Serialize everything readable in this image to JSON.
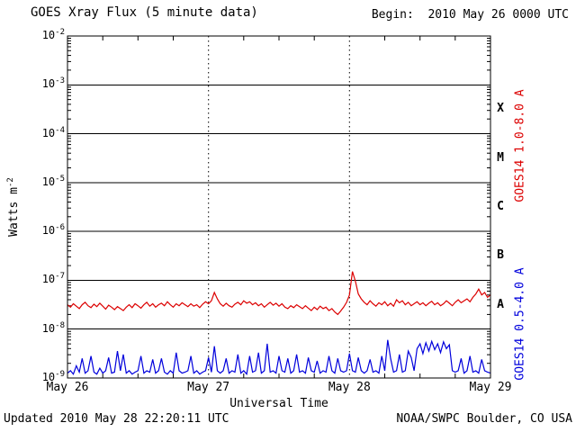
{
  "header": {
    "title": "GOES Xray Flux (5 minute data)",
    "begin_label": "Begin:  2010 May 26 0000 UTC"
  },
  "labels": {
    "xlabel": "Universal Time",
    "ylabel_base": "Watts m",
    "ylabel_exp": "-2"
  },
  "footer": {
    "updated": "Updated 2010 May 28 22:20:11 UTC",
    "credit": "NOAA/SWPC Boulder, CO USA"
  },
  "chart_data": {
    "type": "line",
    "title": "GOES Xray Flux (5 minute data)",
    "xlabel": "Universal Time",
    "ylabel": "Watts m^-2",
    "x_unit": "hours since 2010 May 26 0000 UTC",
    "xlim": [
      0,
      72
    ],
    "ylim_log10": [
      -9,
      -2
    ],
    "x_tick_labels": [
      "May 26",
      "May 27",
      "May 28",
      "May 29"
    ],
    "x_tick_hours": [
      0,
      24,
      48,
      72
    ],
    "y_tick_exponents": [
      -2,
      -3,
      -4,
      -5,
      -6,
      -7,
      -8,
      -9
    ],
    "grid": {
      "horizontal_decade_lines": "solid",
      "vertical_day_lines": "dotted"
    },
    "flare_class_bands": [
      {
        "label": "X",
        "mid_exponent": -3.5
      },
      {
        "label": "M",
        "mid_exponent": -4.5
      },
      {
        "label": "C",
        "mid_exponent": -5.5
      },
      {
        "label": "B",
        "mid_exponent": -6.5
      },
      {
        "label": "A",
        "mid_exponent": -7.5
      }
    ],
    "series": [
      {
        "name": "GOES14 1.0-8.0 A",
        "color": "#dc0000",
        "step_hours": 0.5,
        "log10_flux": [
          -7.5,
          -7.55,
          -7.48,
          -7.53,
          -7.58,
          -7.5,
          -7.45,
          -7.52,
          -7.56,
          -7.49,
          -7.54,
          -7.47,
          -7.53,
          -7.59,
          -7.51,
          -7.55,
          -7.6,
          -7.54,
          -7.58,
          -7.62,
          -7.55,
          -7.5,
          -7.56,
          -7.48,
          -7.52,
          -7.57,
          -7.5,
          -7.45,
          -7.53,
          -7.48,
          -7.55,
          -7.5,
          -7.47,
          -7.52,
          -7.44,
          -7.5,
          -7.55,
          -7.48,
          -7.52,
          -7.46,
          -7.5,
          -7.54,
          -7.48,
          -7.53,
          -7.5,
          -7.56,
          -7.49,
          -7.44,
          -7.48,
          -7.42,
          -7.25,
          -7.38,
          -7.48,
          -7.53,
          -7.47,
          -7.52,
          -7.55,
          -7.49,
          -7.45,
          -7.5,
          -7.42,
          -7.47,
          -7.44,
          -7.5,
          -7.46,
          -7.52,
          -7.48,
          -7.55,
          -7.5,
          -7.45,
          -7.51,
          -7.47,
          -7.53,
          -7.48,
          -7.55,
          -7.58,
          -7.52,
          -7.56,
          -7.5,
          -7.54,
          -7.58,
          -7.52,
          -7.57,
          -7.62,
          -7.55,
          -7.6,
          -7.53,
          -7.58,
          -7.55,
          -7.62,
          -7.58,
          -7.65,
          -7.7,
          -7.63,
          -7.55,
          -7.45,
          -7.3,
          -6.82,
          -7.02,
          -7.28,
          -7.38,
          -7.45,
          -7.5,
          -7.42,
          -7.48,
          -7.53,
          -7.46,
          -7.5,
          -7.44,
          -7.52,
          -7.47,
          -7.53,
          -7.4,
          -7.46,
          -7.42,
          -7.5,
          -7.45,
          -7.52,
          -7.48,
          -7.44,
          -7.5,
          -7.46,
          -7.52,
          -7.47,
          -7.43,
          -7.5,
          -7.46,
          -7.52,
          -7.48,
          -7.42,
          -7.47,
          -7.52,
          -7.45,
          -7.4,
          -7.46,
          -7.42,
          -7.38,
          -7.44,
          -7.35,
          -7.28,
          -7.18,
          -7.3,
          -7.25,
          -7.35,
          -7.3
        ]
      },
      {
        "name": "GOES14 0.5-4.0 A",
        "color": "#0000dc",
        "step_hours": 0.5,
        "log10_flux": [
          -8.9,
          -8.85,
          -8.92,
          -8.75,
          -8.88,
          -8.6,
          -8.9,
          -8.85,
          -8.55,
          -8.88,
          -8.92,
          -8.8,
          -8.9,
          -8.85,
          -8.58,
          -8.9,
          -8.88,
          -8.45,
          -8.85,
          -8.52,
          -8.9,
          -8.85,
          -8.92,
          -8.88,
          -8.85,
          -8.55,
          -8.9,
          -8.85,
          -8.88,
          -8.62,
          -8.9,
          -8.85,
          -8.6,
          -8.88,
          -8.92,
          -8.85,
          -8.9,
          -8.48,
          -8.85,
          -8.9,
          -8.88,
          -8.85,
          -8.55,
          -8.9,
          -8.85,
          -8.92,
          -8.88,
          -8.85,
          -8.58,
          -8.88,
          -8.35,
          -8.85,
          -8.9,
          -8.85,
          -8.6,
          -8.9,
          -8.85,
          -8.88,
          -8.52,
          -8.9,
          -8.85,
          -8.92,
          -8.55,
          -8.88,
          -8.85,
          -8.48,
          -8.9,
          -8.85,
          -8.3,
          -8.88,
          -8.85,
          -8.9,
          -8.55,
          -8.85,
          -8.88,
          -8.6,
          -8.9,
          -8.85,
          -8.52,
          -8.88,
          -8.85,
          -8.9,
          -8.58,
          -8.85,
          -8.88,
          -8.65,
          -8.9,
          -8.85,
          -8.88,
          -8.55,
          -8.85,
          -8.9,
          -8.6,
          -8.85,
          -8.88,
          -8.85,
          -8.5,
          -8.85,
          -8.88,
          -8.58,
          -8.85,
          -8.9,
          -8.85,
          -8.62,
          -8.88,
          -8.85,
          -8.9,
          -8.55,
          -8.85,
          -8.22,
          -8.6,
          -8.88,
          -8.85,
          -8.52,
          -8.88,
          -8.85,
          -8.45,
          -8.58,
          -8.85,
          -8.4,
          -8.3,
          -8.5,
          -8.28,
          -8.45,
          -8.25,
          -8.42,
          -8.3,
          -8.48,
          -8.26,
          -8.4,
          -8.32,
          -8.85,
          -8.88,
          -8.85,
          -8.6,
          -8.9,
          -8.85,
          -8.55,
          -8.88,
          -8.85,
          -8.9,
          -8.62,
          -8.85,
          -8.88,
          -8.9
        ]
      }
    ]
  }
}
